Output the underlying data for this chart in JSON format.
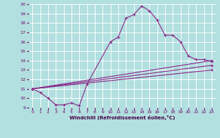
{
  "xlabel": "Windchill (Refroidissement éolien,°C)",
  "xlim": [
    -0.5,
    23.5
  ],
  "ylim": [
    9,
    20
  ],
  "yticks": [
    9,
    10,
    11,
    12,
    13,
    14,
    15,
    16,
    17,
    18,
    19,
    20
  ],
  "xticks": [
    0,
    1,
    2,
    3,
    4,
    5,
    6,
    7,
    8,
    9,
    10,
    11,
    12,
    13,
    14,
    15,
    16,
    17,
    18,
    19,
    20,
    21,
    22,
    23
  ],
  "background_color": "#b2dfdf",
  "grid_color": "#ffffff",
  "line_color": "#882288",
  "line1_x": [
    0,
    1,
    2,
    3,
    4,
    5,
    6,
    7,
    10,
    11,
    12,
    13,
    14,
    15,
    16,
    17,
    18,
    19,
    20,
    21,
    22,
    23
  ],
  "line1_y": [
    11.0,
    10.6,
    10.0,
    9.3,
    9.3,
    9.5,
    9.2,
    11.5,
    16.0,
    16.5,
    18.5,
    18.9,
    19.8,
    19.3,
    18.3,
    16.7,
    16.7,
    16.0,
    14.5,
    14.1,
    14.1,
    13.9
  ],
  "line2_x": [
    0,
    23
  ],
  "line2_y": [
    11.0,
    14.0
  ],
  "line3_x": [
    0,
    23
  ],
  "line3_y": [
    11.0,
    13.5
  ],
  "line4_x": [
    0,
    23
  ],
  "line4_y": [
    11.0,
    13.0
  ]
}
